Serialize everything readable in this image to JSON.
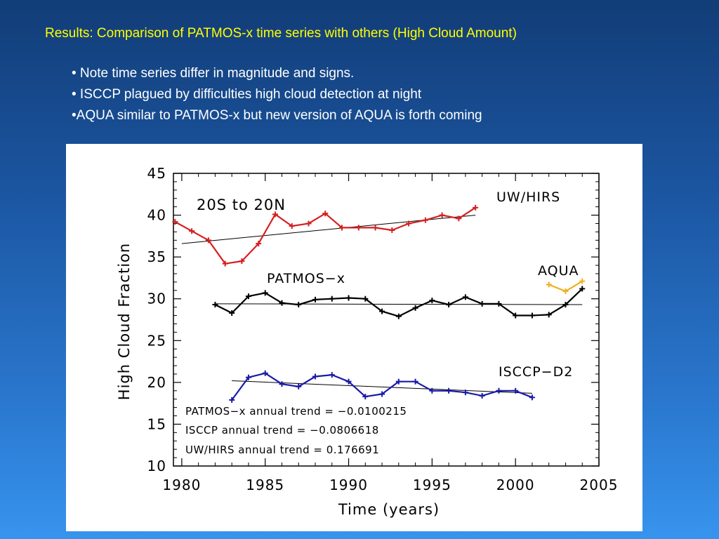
{
  "slide": {
    "title": "Results:  Comparison of PATMOS-x time series with others (High Cloud Amount)",
    "bullets": [
      "• Note time series differ in magnitude and signs.",
      "• ISCCP plagued by difficulties high cloud detection at night",
      "•AQUA similar to PATMOS-x but new version of AQUA is forth coming"
    ]
  },
  "chart_data": {
    "type": "line",
    "xlabel": "Time (years)",
    "ylabel": "High Cloud Fraction",
    "xlim": [
      1979.5,
      2005
    ],
    "ylim": [
      10,
      45
    ],
    "xticks": [
      1980,
      1985,
      1990,
      1995,
      2000,
      2005
    ],
    "yticks": [
      10,
      15,
      20,
      25,
      30,
      35,
      40,
      45
    ],
    "grid": false,
    "colors": {
      "uw_hirs": "#d42020",
      "patmos_x": "#000000",
      "isccp": "#1a1aa8",
      "aqua": "#f0b020",
      "trend": "#000000"
    },
    "annotations": {
      "region": "20S to 20N",
      "uw_hirs": "UW/HIRS",
      "aqua": "AQUA",
      "patmos": "PATMOS−x",
      "isccp": "ISCCP−D2",
      "trend_patmos": "PATMOS−x annual trend = −0.0100215",
      "trend_isccp": "ISCCP annual trend = −0.0806618",
      "trend_uwhirs": "UW/HIRS annual trend = 0.176691"
    },
    "series": [
      {
        "name": "UW/HIRS",
        "x": [
          1979.6,
          1980.6,
          1981.6,
          1982.6,
          1983.6,
          1984.6,
          1985.6,
          1986.6,
          1987.6,
          1988.6,
          1989.6,
          1990.6,
          1991.6,
          1992.6,
          1993.6,
          1994.6,
          1995.6,
          1996.6,
          1997.6
        ],
        "y": [
          39.2,
          38.1,
          37.0,
          34.2,
          34.5,
          36.6,
          40.1,
          38.7,
          39.0,
          40.2,
          38.5,
          38.5,
          38.5,
          38.2,
          39.0,
          39.4,
          40.0,
          39.6,
          40.9
        ],
        "trend": [
          [
            1980,
            36.6
          ],
          [
            1997.6,
            40.0
          ]
        ]
      },
      {
        "name": "PATMOS-x",
        "x": [
          1982,
          1983,
          1984,
          1985,
          1986,
          1987,
          1988,
          1989,
          1990,
          1991,
          1992,
          1993,
          1994,
          1995,
          1996,
          1997,
          1998,
          1999,
          2000,
          2001,
          2002,
          2003,
          2004
        ],
        "y": [
          29.3,
          28.3,
          30.3,
          30.7,
          29.5,
          29.3,
          29.9,
          30.0,
          30.1,
          30.0,
          28.5,
          27.9,
          28.9,
          29.8,
          29.3,
          30.2,
          29.4,
          29.4,
          28.0,
          28.0,
          28.1,
          29.3,
          31.2
        ],
        "trend": [
          [
            1982,
            29.4
          ],
          [
            2004,
            29.3
          ]
        ]
      },
      {
        "name": "ISCCP-D2",
        "x": [
          1983,
          1984,
          1985,
          1986,
          1987,
          1988,
          1989,
          1990,
          1991,
          1992,
          1993,
          1994,
          1995,
          1996,
          1997,
          1998,
          1999,
          2000,
          2001
        ],
        "y": [
          17.9,
          20.6,
          21.1,
          19.8,
          19.5,
          20.7,
          20.9,
          20.1,
          18.3,
          18.6,
          20.1,
          20.1,
          19.0,
          19.0,
          18.8,
          18.4,
          19.0,
          19.0,
          18.2
        ],
        "trend": [
          [
            1983,
            20.2
          ],
          [
            2001,
            18.7
          ]
        ]
      },
      {
        "name": "AQUA",
        "x": [
          2002,
          2003,
          2004
        ],
        "y": [
          31.7,
          30.9,
          32.1
        ]
      }
    ]
  }
}
